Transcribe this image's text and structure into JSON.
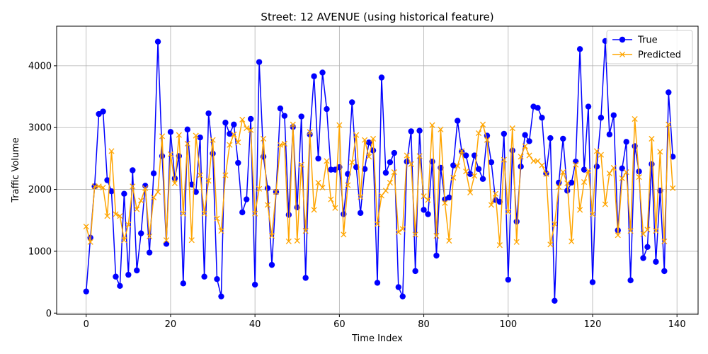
{
  "chart_data": {
    "type": "line",
    "title": "Street: 12 AVENUE (using historical feature)",
    "xlabel": "Time Index",
    "ylabel": "Traffic Volume",
    "xlim": [
      -7,
      145
    ],
    "ylim": [
      -20,
      4640
    ],
    "xticks": [
      0,
      20,
      40,
      60,
      80,
      100,
      120,
      140
    ],
    "yticks": [
      0,
      1000,
      2000,
      3000,
      4000
    ],
    "grid": true,
    "legend_position": "top-right",
    "series": [
      {
        "name": "True",
        "color": "#0000ff",
        "marker": "circle",
        "values": [
          350,
          1220,
          2050,
          3220,
          3260,
          2150,
          1970,
          590,
          440,
          1930,
          620,
          2310,
          690,
          1290,
          2060,
          980,
          2260,
          4390,
          2540,
          1120,
          2930,
          2180,
          2540,
          480,
          2970,
          2080,
          1960,
          2840,
          590,
          3230,
          2580,
          550,
          270,
          3080,
          2900,
          3050,
          2430,
          1630,
          1840,
          3140,
          460,
          4060,
          2530,
          2020,
          780,
          1960,
          3310,
          3190,
          1590,
          3010,
          1710,
          3180,
          570,
          2890,
          3830,
          2500,
          3890,
          3300,
          2320,
          2320,
          2360,
          1600,
          2250,
          3410,
          2360,
          1620,
          2330,
          2760,
          2630,
          490,
          3810,
          2270,
          2440,
          2590,
          420,
          270,
          2450,
          2940,
          680,
          2950,
          1670,
          1600,
          2450,
          930,
          2350,
          1840,
          1870,
          2390,
          3110,
          2610,
          2550,
          2250,
          2550,
          2330,
          2170,
          2870,
          2440,
          1830,
          1800,
          2900,
          540,
          2630,
          1480,
          2370,
          2880,
          2780,
          3340,
          3320,
          3160,
          2260,
          2830,
          200,
          2110,
          2820,
          1980,
          2110,
          2450,
          4270,
          2320,
          3340,
          500,
          2370,
          3160,
          4400,
          2890,
          3200,
          1340,
          2340,
          2770,
          530,
          2700,
          2290,
          890,
          1070,
          2410,
          830,
          1980,
          680,
          3570,
          2530
        ]
      },
      {
        "name": "Predicted",
        "color": "#ffa500",
        "marker": "x",
        "values": [
          1400,
          1150,
          2050,
          2050,
          2030,
          1570,
          2620,
          1600,
          1570,
          1180,
          1430,
          2050,
          1680,
          1820,
          2020,
          1240,
          1870,
          1960,
          2860,
          1180,
          2570,
          2100,
          2880,
          1610,
          2740,
          1180,
          2870,
          2230,
          1610,
          2140,
          2800,
          1530,
          1330,
          2230,
          2720,
          2890,
          2760,
          3130,
          2990,
          2960,
          1610,
          2010,
          2820,
          1750,
          1250,
          1960,
          2720,
          2740,
          1160,
          3050,
          1170,
          2400,
          1330,
          2930,
          1670,
          2110,
          2030,
          2460,
          1840,
          1700,
          3040,
          1270,
          2070,
          2440,
          2880,
          1880,
          2800,
          2530,
          2820,
          1440,
          1900,
          1980,
          2110,
          2280,
          1310,
          1360,
          2550,
          2410,
          1270,
          2540,
          1890,
          1830,
          3040,
          1250,
          2970,
          1780,
          1170,
          2190,
          2380,
          2620,
          2290,
          1950,
          2220,
          2910,
          3050,
          2800,
          1750,
          1930,
          1100,
          2480,
          1640,
          2990,
          1150,
          2530,
          2700,
          2550,
          2460,
          2460,
          2390,
          2250,
          1110,
          1440,
          2040,
          2280,
          2100,
          1160,
          2400,
          1670,
          2120,
          2300,
          1600,
          2620,
          2560,
          1760,
          2260,
          2350,
          1260,
          2180,
          2280,
          1330,
          3140,
          2200,
          1280,
          1350,
          2820,
          1330,
          2610,
          1160,
          3050,
          2020
        ]
      }
    ]
  }
}
